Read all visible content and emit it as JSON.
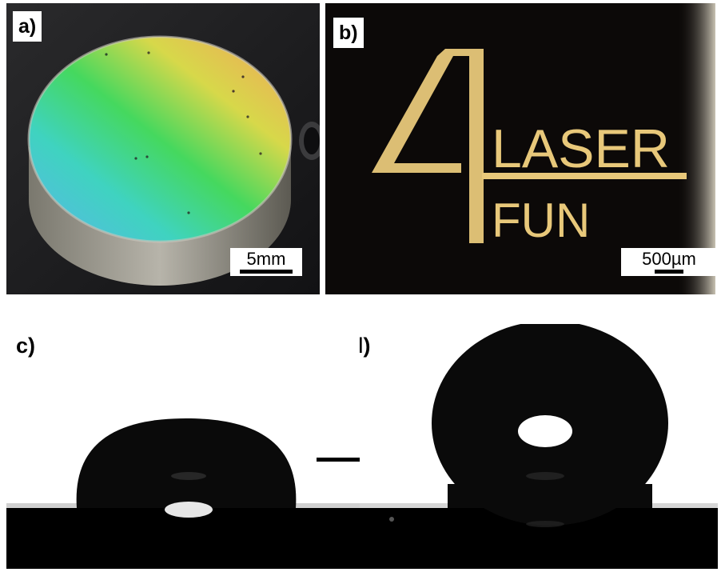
{
  "panels": {
    "a": {
      "label": "a)",
      "scale_bar": "5mm",
      "description_icon": "metal-disc-rainbow-surface"
    },
    "b": {
      "label": "b)",
      "scale_bar": "500µm",
      "logo": {
        "line1": "LASER",
        "line2": "FUN",
        "digit": "4"
      }
    },
    "c": {
      "label": "c)",
      "description_icon": "water-droplet-low-contact-angle"
    },
    "d": {
      "label": "d)",
      "description_icon": "water-droplet-high-contact-angle"
    }
  },
  "arrow_icon": "right-arrow",
  "colors": {
    "panel_a_background": "#1e1e20",
    "panel_b_background": "#0c0908",
    "logo_gold": "#e8c87a",
    "droplet": "#0a0a0a"
  }
}
